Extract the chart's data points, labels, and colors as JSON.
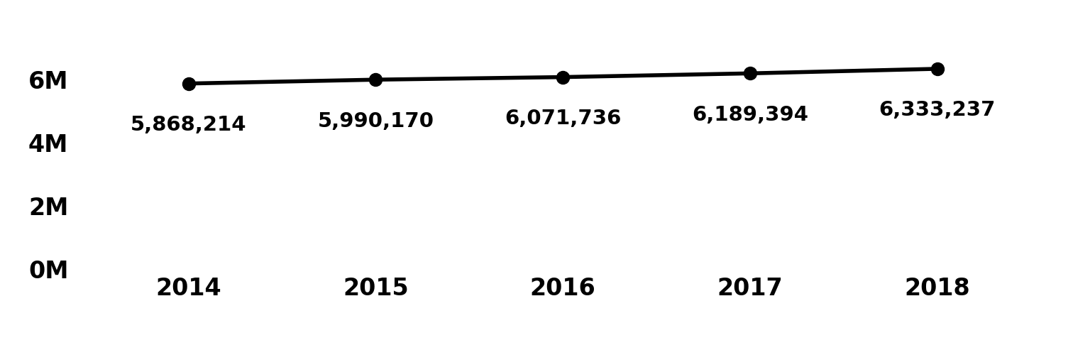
{
  "years": [
    2014,
    2015,
    2016,
    2017,
    2018
  ],
  "values": [
    5868214,
    5990170,
    6071736,
    6189394,
    6333237
  ],
  "labels": [
    "5,868,214",
    "5,990,170",
    "6,071,736",
    "6,189,394",
    "6,333,237"
  ],
  "line_color": "#000000",
  "marker_color": "#000000",
  "background_color": "#ffffff",
  "ylim": [
    0,
    7200000
  ],
  "yticks": [
    0,
    2000000,
    4000000,
    6000000
  ],
  "ytick_labels": [
    "0M",
    "2M",
    "4M",
    "6M"
  ],
  "tick_fontsize": 24,
  "annotation_fontsize": 21,
  "line_width": 4.0,
  "marker_size": 13,
  "xlim_left": 2013.4,
  "xlim_right": 2018.7
}
